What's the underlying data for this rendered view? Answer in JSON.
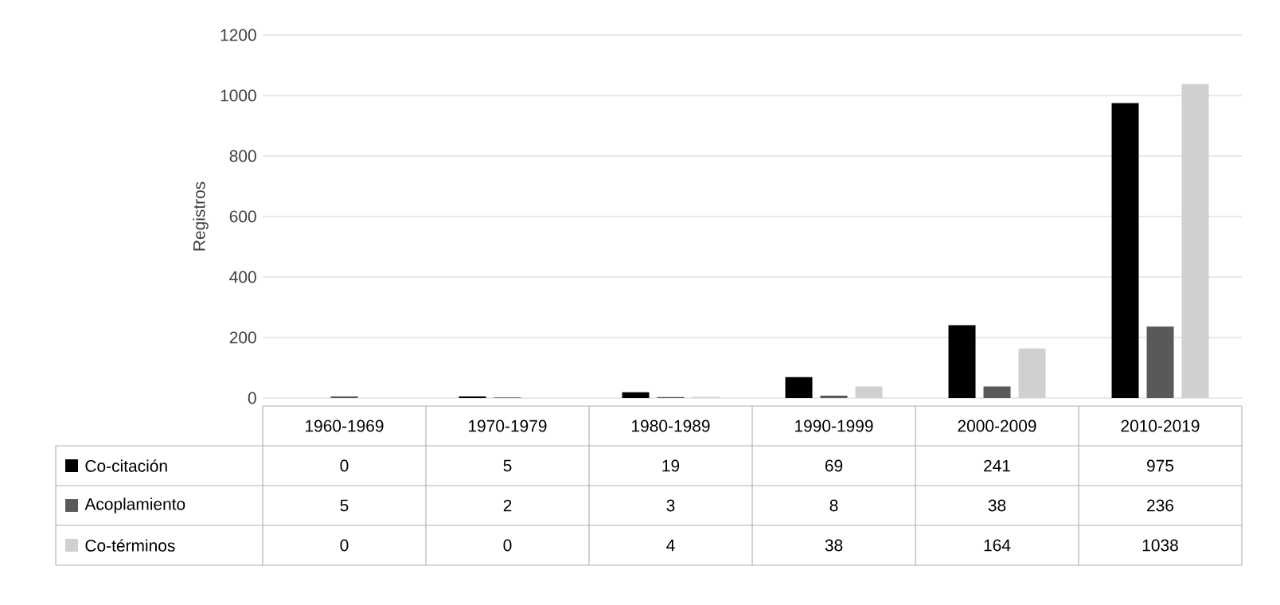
{
  "chart_data": {
    "type": "bar",
    "ylabel": "Registros",
    "categories": [
      "1960-1969",
      "1970-1979",
      "1980-1989",
      "1990-1999",
      "2000-2009",
      "2010-2019"
    ],
    "series": [
      {
        "name": "Co-citación",
        "color": "#000000",
        "values": [
          0,
          5,
          19,
          69,
          241,
          975
        ]
      },
      {
        "name": "Acoplamiento",
        "color": "#595959",
        "values": [
          5,
          2,
          3,
          8,
          38,
          236
        ]
      },
      {
        "name": "Co-términos",
        "color": "#d0d0d0",
        "values": [
          0,
          0,
          4,
          38,
          164,
          1038
        ]
      }
    ],
    "ylim": [
      0,
      1200
    ],
    "yticks": [
      0,
      200,
      400,
      600,
      800,
      1000,
      1200
    ],
    "grid": "y",
    "legend": "bottom left",
    "data_labels": true
  }
}
